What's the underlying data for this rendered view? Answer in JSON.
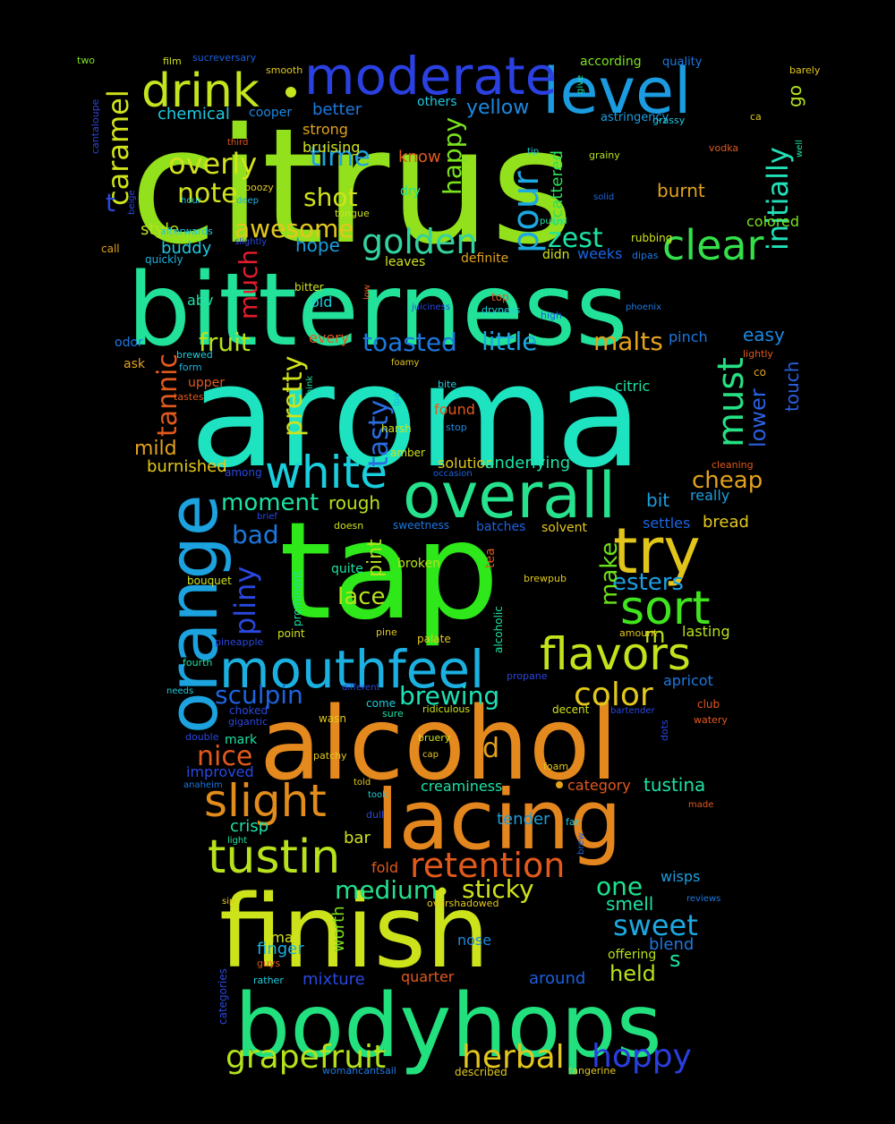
{
  "words": [
    {
      "t": "citrus",
      "c": "#93e01c"
    },
    {
      "t": "aroma",
      "c": "#1ee3c0"
    },
    {
      "t": "tap",
      "c": "#2ee81a"
    },
    {
      "t": "bitterness",
      "c": "#22e29a"
    },
    {
      "t": "alcohol",
      "c": "#e4891e"
    },
    {
      "t": "finish",
      "c": "#cce21a"
    },
    {
      "t": "bodyhops",
      "c": "#22e07e"
    },
    {
      "t": "orange",
      "c": "#1ca3df"
    },
    {
      "t": "lacing",
      "c": "#e4861e"
    },
    {
      "t": "overall",
      "c": "#26e28d"
    },
    {
      "t": "level",
      "c": "#1b9ce0"
    },
    {
      "t": "moderate",
      "c": "#2a40e0"
    },
    {
      "t": "try",
      "c": "#e1c51b"
    },
    {
      "t": "mouthfeel",
      "c": "#1bb0e0"
    },
    {
      "t": "drink",
      "c": "#c4e41e"
    },
    {
      "t": "white",
      "c": "#19cfde"
    },
    {
      "t": "sort",
      "c": "#40e41e"
    },
    {
      "t": "flavors",
      "c": "#c4e21c"
    },
    {
      "t": "clear",
      "c": "#34e04a"
    },
    {
      "t": "slight",
      "c": "#e28c1c"
    },
    {
      "t": "tustin",
      "c": "#b7e21c"
    },
    {
      "t": "retention",
      "c": "#e2591c"
    },
    {
      "t": "golden",
      "c": "#33d2a0"
    },
    {
      "t": "pour",
      "c": "#1ca8e0"
    },
    {
      "t": "grapefruit",
      "c": "#b3e21c"
    },
    {
      "t": "color",
      "c": "#e2c81c"
    },
    {
      "t": "must",
      "c": "#26e084"
    },
    {
      "t": "herbal",
      "c": "#e2c61c"
    },
    {
      "t": "hoppy",
      "c": "#2a3ee0"
    },
    {
      "t": "sweet",
      "c": "#1ca8e0"
    },
    {
      "t": "initially",
      "c": "#22e0b9"
    },
    {
      "t": "caramel",
      "c": "#cfe21c"
    },
    {
      "t": "tannic",
      "c": "#e2591c"
    },
    {
      "t": "pliny",
      "c": "#2a48e0"
    },
    {
      "t": "much",
      "c": "#e21c2c"
    },
    {
      "t": "pretty",
      "c": "#cfe21c"
    },
    {
      "t": "happy",
      "c": "#7be21c"
    },
    {
      "t": "tasty",
      "c": "#2a6ce0"
    },
    {
      "t": "awesome",
      "c": "#e2c81c"
    },
    {
      "t": "zest",
      "c": "#1ce2a4"
    },
    {
      "t": "time",
      "c": "#1ca2e0"
    },
    {
      "t": "overly",
      "c": "#d2e21c"
    },
    {
      "t": "note",
      "c": "#cfe21c"
    },
    {
      "t": "shot",
      "c": "#cfe21c"
    },
    {
      "t": "fruit",
      "c": "#b7e21c"
    },
    {
      "t": "little",
      "c": "#1ca8e0"
    },
    {
      "t": "toasted",
      "c": "#1c78e0"
    },
    {
      "t": "malts",
      "c": "#e2a21c"
    },
    {
      "t": "sculpin",
      "c": "#1c64e0"
    },
    {
      "t": "brewing",
      "c": "#1ce2b5"
    },
    {
      "t": "nice",
      "c": "#e2591c"
    },
    {
      "t": "medium",
      "c": "#22e08e"
    },
    {
      "t": "sticky",
      "c": "#cfe21c"
    },
    {
      "t": "one",
      "c": "#1ce28c"
    },
    {
      "t": "moment",
      "c": "#1ce2a4"
    },
    {
      "t": "bad",
      "c": "#1c78e0"
    },
    {
      "t": "lace",
      "c": "#b7e21c"
    },
    {
      "t": "esters",
      "c": "#1c9ee0"
    },
    {
      "t": "make",
      "c": "#6be21c"
    },
    {
      "t": "cheap",
      "c": "#e2a21c"
    },
    {
      "t": "lower",
      "c": "#2a60e0"
    },
    {
      "t": "easy",
      "c": "#1c88e0"
    },
    {
      "t": "mild",
      "c": "#e2a21c"
    },
    {
      "t": "burnished",
      "c": "#e2c81c"
    },
    {
      "t": "style",
      "c": "#b7e21c"
    },
    {
      "t": "buddy",
      "c": "#1cc9e0"
    },
    {
      "t": "hope",
      "c": "#1c9ee0"
    },
    {
      "t": "yellow",
      "c": "#1c88e0"
    },
    {
      "t": "better",
      "c": "#1c7ae0"
    },
    {
      "t": "chemical",
      "c": "#1cc9e0"
    },
    {
      "t": "strong",
      "c": "#e2a21c"
    },
    {
      "t": "bruising",
      "c": "#cfe21c"
    },
    {
      "t": "know",
      "c": "#e2591c"
    },
    {
      "t": "burnt",
      "c": "#e2a21c"
    },
    {
      "t": "scattered",
      "c": "#2be05a"
    },
    {
      "t": "touch",
      "c": "#2a60e0"
    },
    {
      "t": "go",
      "c": "#b7e21c"
    },
    {
      "t": "colored",
      "c": "#7be21c"
    },
    {
      "t": "rough",
      "c": "#b7e21c"
    },
    {
      "t": "pint",
      "c": "#b7e21c"
    },
    {
      "t": "worth",
      "c": "#7be21c"
    },
    {
      "t": "d",
      "c": "#e2a21c"
    },
    {
      "t": "m",
      "c": "#b7e21c"
    },
    {
      "t": "s",
      "c": "#1ce2a4"
    },
    {
      "t": "t",
      "c": "#2a48e0"
    },
    {
      "t": "held",
      "c": "#b7e21c"
    },
    {
      "t": "blend",
      "c": "#1c78e0"
    },
    {
      "t": "smell",
      "c": "#1ce2a4"
    },
    {
      "t": "tustina",
      "c": "#1ce2a4"
    },
    {
      "t": "category",
      "c": "#e2591c"
    },
    {
      "t": "tender",
      "c": "#1c9ee0"
    },
    {
      "t": "bread",
      "c": "#e2c81c"
    },
    {
      "t": "bit",
      "c": "#1c9ee0"
    },
    {
      "t": "settles",
      "c": "#1c64e0"
    },
    {
      "t": "really",
      "c": "#1c9ee0"
    },
    {
      "t": "apricot",
      "c": "#1c78e0"
    },
    {
      "t": "lasting",
      "c": "#b7e21c"
    },
    {
      "t": "solution",
      "c": "#e2c81c"
    },
    {
      "t": "underlying",
      "c": "#1ce2a4"
    },
    {
      "t": "mixture",
      "c": "#2a48e0"
    },
    {
      "t": "small",
      "c": "#d2e21c"
    },
    {
      "t": "finger",
      "c": "#1cb2e0"
    },
    {
      "t": "nose",
      "c": "#1c88e0"
    },
    {
      "t": "quarter",
      "c": "#e2591c"
    },
    {
      "t": "around",
      "c": "#1c60e0"
    },
    {
      "t": "offering",
      "c": "#b7e21c"
    },
    {
      "t": "crisp",
      "c": "#1ce2a4"
    },
    {
      "t": "bar",
      "c": "#cfe21c"
    },
    {
      "t": "fold",
      "c": "#e2591c"
    },
    {
      "t": "wisps",
      "c": "#1c9ee0"
    },
    {
      "t": "creaminess",
      "c": "#1ce2a4"
    },
    {
      "t": "improved",
      "c": "#2a48e0"
    },
    {
      "t": "mark",
      "c": "#1ce2a4"
    },
    {
      "t": "quite",
      "c": "#1ce2a4"
    },
    {
      "t": "broken",
      "c": "#b7e21c"
    },
    {
      "t": "solvent",
      "c": "#e2c81c"
    },
    {
      "t": "batches",
      "c": "#1c64e0"
    },
    {
      "t": "found",
      "c": "#e2591c"
    },
    {
      "t": "citric",
      "c": "#1ce2a4"
    },
    {
      "t": "pinch",
      "c": "#1c78e0"
    },
    {
      "t": "every",
      "c": "#e2591c"
    },
    {
      "t": "old",
      "c": "#1ccfe0"
    },
    {
      "t": "abv",
      "c": "#1ce2a4"
    },
    {
      "t": "odor",
      "c": "#1c78e0"
    },
    {
      "t": "upper",
      "c": "#e2591c"
    },
    {
      "t": "ask",
      "c": "#e2a21c"
    },
    {
      "t": "dry",
      "c": "#1ce2a4"
    },
    {
      "t": "definite",
      "c": "#e2a21c"
    },
    {
      "t": "weeks",
      "c": "#1c64e0"
    },
    {
      "t": "didn",
      "c": "#cfe21c"
    },
    {
      "t": "leaves",
      "c": "#cfe21c"
    },
    {
      "t": "quickly",
      "c": "#1cb2e0"
    },
    {
      "t": "call",
      "c": "#e2a21c"
    },
    {
      "t": "cooper",
      "c": "#1c88e0"
    },
    {
      "t": "others",
      "c": "#1cc9e0"
    },
    {
      "t": "according",
      "c": "#7be21c"
    },
    {
      "t": "quality",
      "c": "#1c78e0"
    },
    {
      "t": "astringency",
      "c": "#1c9ee0"
    },
    {
      "t": "grassy",
      "c": "#1cc9e0"
    },
    {
      "t": "sucreversary",
      "c": "#1c60e0"
    },
    {
      "t": "two",
      "c": "#7be21c"
    },
    {
      "t": "film",
      "c": "#cfe21c"
    },
    {
      "t": "smooth",
      "c": "#e2c81c"
    },
    {
      "t": "barely",
      "c": "#e2c81c"
    },
    {
      "t": "give",
      "c": "#1ce2a4"
    },
    {
      "t": "ca",
      "c": "#e2c81c"
    },
    {
      "t": "cantaloupe",
      "c": "#2a48e0"
    },
    {
      "t": "beige",
      "c": "#2a48e0"
    },
    {
      "t": "third",
      "c": "#e2591c"
    },
    {
      "t": "hour",
      "c": "#1ccfe0"
    },
    {
      "t": "boozy",
      "c": "#e2c81c"
    },
    {
      "t": "deep",
      "c": "#1cb2e0"
    },
    {
      "t": "tongue",
      "c": "#cfe21c"
    },
    {
      "t": "tip",
      "c": "#1ccfe0"
    },
    {
      "t": "grainy",
      "c": "#b7e21c"
    },
    {
      "t": "solid",
      "c": "#1c64e0"
    },
    {
      "t": "pulled",
      "c": "#1ce2a4"
    },
    {
      "t": "vodka",
      "c": "#e2591c"
    },
    {
      "t": "well",
      "c": "#1ce2a4"
    },
    {
      "t": "afterwards",
      "c": "#1cc9e0"
    },
    {
      "t": "slightly",
      "c": "#2a48e0"
    },
    {
      "t": "rubbing",
      "c": "#cfe21c"
    },
    {
      "t": "dipas",
      "c": "#1c78e0"
    },
    {
      "t": "co",
      "c": "#e2a21c"
    },
    {
      "t": "bitter",
      "c": "#cfe21c"
    },
    {
      "t": "low",
      "c": "#e2591c"
    },
    {
      "t": "juiciness",
      "c": "#2a48e0"
    },
    {
      "t": "top",
      "c": "#e2591c"
    },
    {
      "t": "dryness",
      "c": "#1ccfe0"
    },
    {
      "t": "high",
      "c": "#1c60e0"
    },
    {
      "t": "phoenix",
      "c": "#1c78e0"
    },
    {
      "t": "brewed",
      "c": "#1ccfe0"
    },
    {
      "t": "form",
      "c": "#1cb2e0"
    },
    {
      "t": "tastes",
      "c": "#e2591c"
    },
    {
      "t": "foamy",
      "c": "#e2c81c"
    },
    {
      "t": "think",
      "c": "#1ce2a4"
    },
    {
      "t": "ipa",
      "c": "#1cb2e0"
    },
    {
      "t": "bite",
      "c": "#1ccfe0"
    },
    {
      "t": "harsh",
      "c": "#cfe21c"
    },
    {
      "t": "stop",
      "c": "#1c88e0"
    },
    {
      "t": "lightly",
      "c": "#e2591c"
    },
    {
      "t": "amber",
      "c": "#cfe21c"
    },
    {
      "t": "among",
      "c": "#2a48e0"
    },
    {
      "t": "occasion",
      "c": "#1c60e0"
    },
    {
      "t": "cleaning",
      "c": "#e2591c"
    },
    {
      "t": "brief",
      "c": "#2a48e0"
    },
    {
      "t": "doesn",
      "c": "#cfe21c"
    },
    {
      "t": "sweetness",
      "c": "#1c78e0"
    },
    {
      "t": "tea",
      "c": "#e2591c"
    },
    {
      "t": "brewpub",
      "c": "#e2c81c"
    },
    {
      "t": "bouquet",
      "c": "#cfe21c"
    },
    {
      "t": "prominent",
      "c": "#1ce2a4"
    },
    {
      "t": "alcoholic",
      "c": "#1ce2a4"
    },
    {
      "t": "pineapple",
      "c": "#2a48e0"
    },
    {
      "t": "point",
      "c": "#cfe21c"
    },
    {
      "t": "pine",
      "c": "#e2c81c"
    },
    {
      "t": "palate",
      "c": "#e2c81c"
    },
    {
      "t": "amount",
      "c": "#e2c81c"
    },
    {
      "t": "fourth",
      "c": "#1ce2a4"
    },
    {
      "t": "propane",
      "c": "#2a48e0"
    },
    {
      "t": "different",
      "c": "#2a48e0"
    },
    {
      "t": "needs",
      "c": "#1ccfe0"
    },
    {
      "t": "come",
      "c": "#1ccfe0"
    },
    {
      "t": "choked",
      "c": "#2a48e0"
    },
    {
      "t": "ridiculous",
      "c": "#cfe21c"
    },
    {
      "t": "gigantic",
      "c": "#2a48e0"
    },
    {
      "t": "sure",
      "c": "#1ce2a4"
    },
    {
      "t": "wasn",
      "c": "#e2c81c"
    },
    {
      "t": "decent",
      "c": "#cfe21c"
    },
    {
      "t": "bartender",
      "c": "#2a48e0"
    },
    {
      "t": "club",
      "c": "#e2591c"
    },
    {
      "t": "watery",
      "c": "#e2591c"
    },
    {
      "t": "dots",
      "c": "#2a48e0"
    },
    {
      "t": "double",
      "c": "#2a48e0"
    },
    {
      "t": "bruery",
      "c": "#cfe21c"
    },
    {
      "t": "patchy",
      "c": "#e2c81c"
    },
    {
      "t": "cap",
      "c": "#e2c81c"
    },
    {
      "t": "foam",
      "c": "#e2c81c"
    },
    {
      "t": "anaheim",
      "c": "#1c78e0"
    },
    {
      "t": "told",
      "c": "#e2c81c"
    },
    {
      "t": "took",
      "c": "#1ccfe0"
    },
    {
      "t": "made",
      "c": "#e2591c"
    },
    {
      "t": "dull",
      "c": "#2a48e0"
    },
    {
      "t": "far",
      "c": "#1ccfe0"
    },
    {
      "t": "light",
      "c": "#1ce2a4"
    },
    {
      "t": "brew",
      "c": "#1c60e0"
    },
    {
      "t": "sip",
      "c": "#e2c81c"
    },
    {
      "t": "overshadowed",
      "c": "#e2c81c"
    },
    {
      "t": "reviews",
      "c": "#1c78e0"
    },
    {
      "t": "guys",
      "c": "#e2591c"
    },
    {
      "t": "rather",
      "c": "#1ccfe0"
    },
    {
      "t": "categories",
      "c": "#2a48e0"
    },
    {
      "t": "womancantsail",
      "c": "#1c78e0"
    },
    {
      "t": "described",
      "c": "#e2c81c"
    },
    {
      "t": "tangerine",
      "c": "#e2c81c"
    }
  ]
}
